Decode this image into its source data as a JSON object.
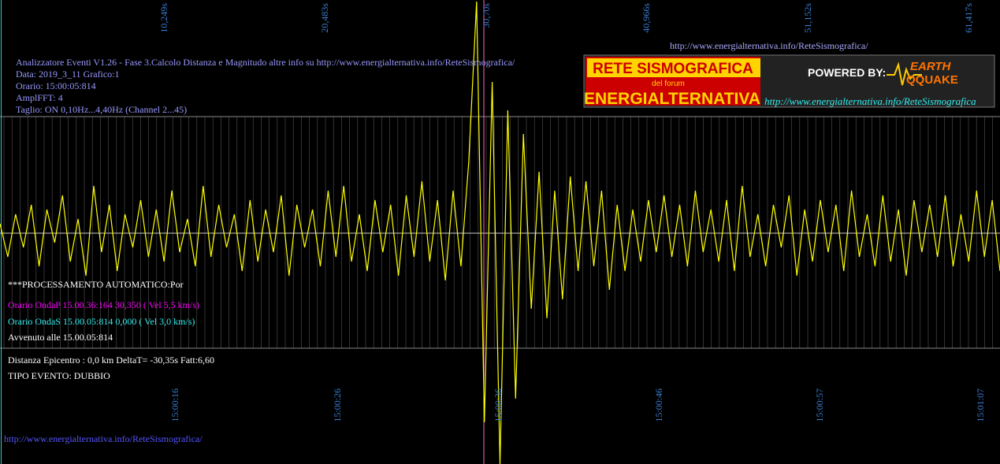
{
  "top_url": "http://www.energialternativa.info/ReteSismografica/",
  "info_lines": [
    "Analizzatore Eventi V1.26 - Fase 3.Calcolo Distanza e Magnitudo altre info su http://www.energialternativa.info/ReteSismografica/",
    "Data: 2019_3_11 Grafico:1",
    "Orario: 15:00:05:814",
    "AmplFFT: 4",
    "Taglio: ON 0,10Hz...4,40Hz       (Channel 2...45)"
  ],
  "logo": {
    "title": "RETE SISMOGRAFICA",
    "subtitle": "del forum",
    "name": "ENERGIALTERNATIVA",
    "powered": "POWERED BY:",
    "brand_top": "EARTH",
    "brand_bottom": "QQUAKE",
    "url": "http://www.energialternativa.info/ReteSismografica"
  },
  "seconds_labels": [
    "10,249s",
    "20,483s",
    "30,70s",
    "40,966s",
    "51,152s",
    "61,417s"
  ],
  "time_labels": [
    "15:00:16",
    "15:00:26",
    "15:00:36",
    "15:00:46",
    "15:00:57",
    "15:01:07"
  ],
  "processing": {
    "header": "***PROCESSAMENTO AUTOMATICO:Por",
    "onda_p": "Orario OndaP 15.00.36:164  30,350 ( Vel 5,5 km/s)",
    "onda_s": "Orario OndaS 15.00.05:814  0,000 ( Vel 3,0 km/s)",
    "avvenuto": "Avvenuto alle 15.00.05:814"
  },
  "result": {
    "distance": "Distanza Epicentro : 0,0 km DeltaT= -30,35s  Fatt:6,60",
    "type": "TIPO EVENTO: DUBBIO"
  },
  "footer_url": "http://www.energialternativa.info/ReteSismografica/",
  "trace": {
    "samples": [
      0.2,
      -0.5,
      0.4,
      -0.3,
      0.6,
      -0.7,
      0.5,
      -0.2,
      0.8,
      -0.6,
      0.3,
      -0.9,
      1.0,
      -0.4,
      0.6,
      -0.8,
      0.4,
      -0.3,
      0.7,
      -0.5,
      0.5,
      -0.6,
      0.9,
      -0.4,
      0.3,
      -0.7,
      1.0,
      -0.5,
      0.6,
      -0.3,
      0.4,
      -0.8,
      0.7,
      -0.6,
      0.5,
      -0.4,
      0.8,
      -0.9,
      0.6,
      -0.3,
      0.5,
      -0.7,
      0.9,
      -0.5,
      1.0,
      -0.6,
      0.4,
      -0.8,
      0.7,
      -0.4,
      0.6,
      -0.9,
      0.8,
      -0.5,
      1.1,
      -0.6,
      0.7,
      -1.0,
      0.9,
      -0.7,
      1.5,
      4.9,
      -4.0,
      3.2,
      -4.9,
      2.6,
      -3.5,
      2.1,
      -1.6,
      1.3,
      -1.8,
      0.9,
      -1.4,
      1.2,
      -0.8,
      1.1,
      -0.7,
      0.9,
      -1.2,
      0.6,
      -0.8,
      0.5,
      -0.6,
      0.7,
      -0.4,
      0.8,
      -0.5,
      0.6,
      -0.7,
      0.9,
      -0.4,
      0.5,
      -0.6,
      0.7,
      -0.8,
      1.0,
      -0.5,
      0.4,
      -0.7,
      0.6,
      -0.3,
      0.8,
      -0.9,
      0.5,
      -0.6,
      0.7,
      -0.4,
      0.6,
      -0.8,
      0.9,
      -0.5,
      0.4,
      -0.7,
      0.8,
      -0.6,
      0.5,
      -0.9,
      0.7,
      -0.4,
      0.6,
      -0.5,
      0.8,
      -0.7,
      0.4,
      -0.6,
      0.9,
      -0.5,
      0.7,
      -0.8
    ]
  }
}
